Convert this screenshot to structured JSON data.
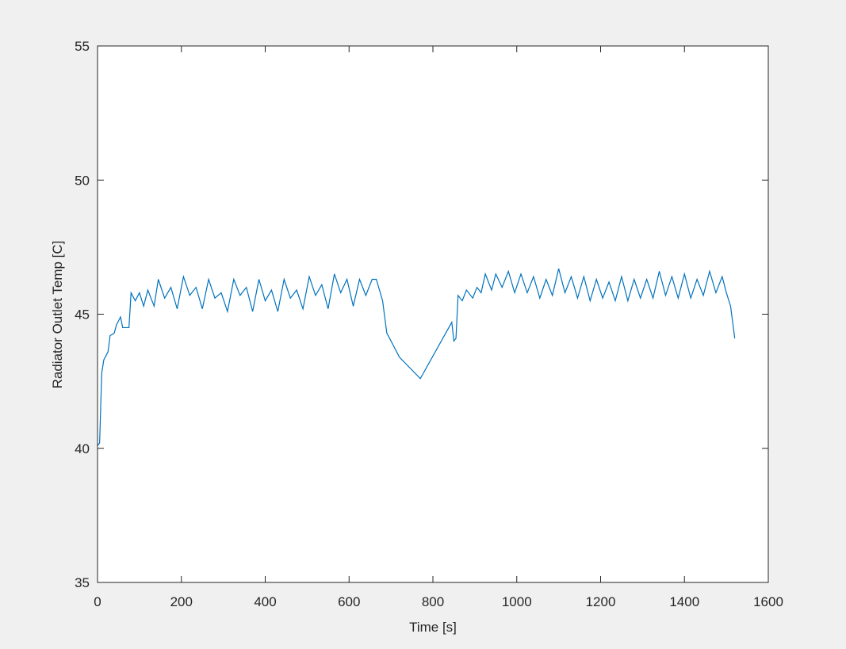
{
  "chart_data": {
    "type": "line",
    "xlabel": "Time [s]",
    "ylabel": "Radiator Outlet Temp [C]",
    "xlim": [
      0,
      1600
    ],
    "xticks": [
      0,
      200,
      400,
      600,
      800,
      1000,
      1200,
      1400,
      1600
    ],
    "ylim": [
      35,
      55
    ],
    "yticks": [
      35,
      40,
      45,
      50,
      55
    ],
    "grid": false,
    "series": [
      {
        "color": "#0072bd",
        "x": [
          0,
          5,
          10,
          15,
          25,
          30,
          40,
          45,
          55,
          60,
          75,
          80,
          90,
          100,
          110,
          120,
          135,
          145,
          160,
          175,
          190,
          205,
          220,
          235,
          250,
          265,
          280,
          295,
          310,
          325,
          340,
          355,
          370,
          385,
          400,
          415,
          430,
          445,
          460,
          475,
          490,
          505,
          520,
          535,
          550,
          565,
          580,
          595,
          610,
          625,
          640,
          655,
          665,
          680,
          690,
          720,
          770,
          845,
          850,
          855,
          860,
          870,
          880,
          895,
          905,
          915,
          925,
          940,
          950,
          965,
          980,
          995,
          1010,
          1025,
          1040,
          1055,
          1070,
          1085,
          1100,
          1115,
          1130,
          1145,
          1160,
          1175,
          1190,
          1205,
          1220,
          1235,
          1250,
          1265,
          1280,
          1295,
          1310,
          1325,
          1340,
          1355,
          1370,
          1385,
          1400,
          1415,
          1430,
          1445,
          1460,
          1475,
          1490,
          1500,
          1510,
          1520
        ],
        "values": [
          40.1,
          40.2,
          42.8,
          43.3,
          43.6,
          44.2,
          44.3,
          44.6,
          44.9,
          44.5,
          44.5,
          45.8,
          45.5,
          45.8,
          45.3,
          45.9,
          45.3,
          46.3,
          45.6,
          46,
          45.2,
          46.4,
          45.7,
          46,
          45.2,
          46.3,
          45.6,
          45.8,
          45.1,
          46.3,
          45.7,
          46,
          45.1,
          46.3,
          45.5,
          45.9,
          45.1,
          46.3,
          45.6,
          45.9,
          45.2,
          46.4,
          45.7,
          46.1,
          45.2,
          46.5,
          45.8,
          46.3,
          45.3,
          46.3,
          45.7,
          46.3,
          46.3,
          45.5,
          44.3,
          43.4,
          42.6,
          44.7,
          44.0,
          44.1,
          45.7,
          45.5,
          45.9,
          45.6,
          46,
          45.8,
          46.5,
          45.9,
          46.5,
          46,
          46.6,
          45.8,
          46.5,
          45.8,
          46.4,
          45.6,
          46.3,
          45.7,
          46.7,
          45.8,
          46.4,
          45.6,
          46.4,
          45.5,
          46.3,
          45.6,
          46.2,
          45.5,
          46.4,
          45.5,
          46.3,
          45.6,
          46.3,
          45.6,
          46.6,
          45.7,
          46.4,
          45.6,
          46.5,
          45.6,
          46.3,
          45.7,
          46.6,
          45.8,
          46.4,
          45.8,
          45.3,
          44.1
        ]
      }
    ]
  }
}
